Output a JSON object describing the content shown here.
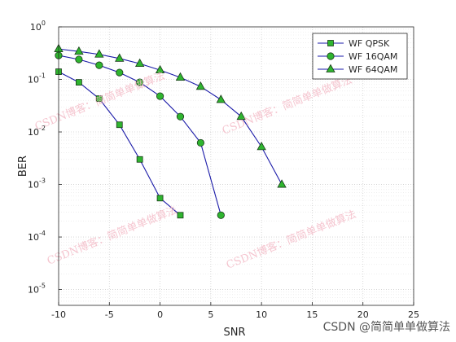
{
  "chart_data": {
    "type": "line",
    "x_label": "SNR",
    "y_label": "BER",
    "log_y": true,
    "grid": true,
    "legend": "northeast",
    "xlim": [
      -10,
      25
    ],
    "xticks": [
      -10,
      -5,
      0,
      5,
      10,
      15,
      20,
      25
    ],
    "ylim": [
      5e-06,
      1
    ],
    "yticks": [
      {
        "value": 1,
        "label": "10",
        "exponent": "0"
      },
      {
        "value": 0.1,
        "label": "10",
        "exponent": "-1"
      },
      {
        "value": 0.01,
        "label": "10",
        "exponent": "-2"
      },
      {
        "value": 0.001,
        "label": "10",
        "exponent": "-3"
      },
      {
        "value": 0.0001,
        "label": "10",
        "exponent": "-4"
      },
      {
        "value": 1e-05,
        "label": "10",
        "exponent": "-5"
      }
    ],
    "series": [
      {
        "name": "WF QPSK",
        "marker": "square",
        "color": "#1a1aa8",
        "marker_color": "#2fb52f",
        "x": [
          -10,
          -8,
          -6,
          -4,
          -2,
          0,
          2
        ],
        "values": [
          0.14,
          0.088,
          0.043,
          0.0137,
          0.003,
          0.00055,
          0.00026
        ]
      },
      {
        "name": "WF 16QAM",
        "marker": "circle",
        "color": "#1a1aa8",
        "marker_color": "#2fb52f",
        "x": [
          -10,
          -8,
          -6,
          -4,
          -2,
          0,
          2,
          4,
          6
        ],
        "values": [
          0.286,
          0.24,
          0.186,
          0.135,
          0.088,
          0.048,
          0.0196,
          0.0062,
          0.00026
        ]
      },
      {
        "name": "WF 64QAM",
        "marker": "triangle",
        "color": "#1a1aa8",
        "marker_color": "#2fb52f",
        "x": [
          -10,
          -8,
          -6,
          -4,
          -2,
          0,
          2,
          4,
          6,
          8,
          10,
          12
        ],
        "values": [
          0.38,
          0.34,
          0.3,
          0.25,
          0.2,
          0.15,
          0.109,
          0.073,
          0.041,
          0.0196,
          0.0052,
          0.001
        ]
      }
    ],
    "watermark": "CSDN博客：简简单单做算法",
    "footer": "CSDN @简简单单做算法"
  }
}
